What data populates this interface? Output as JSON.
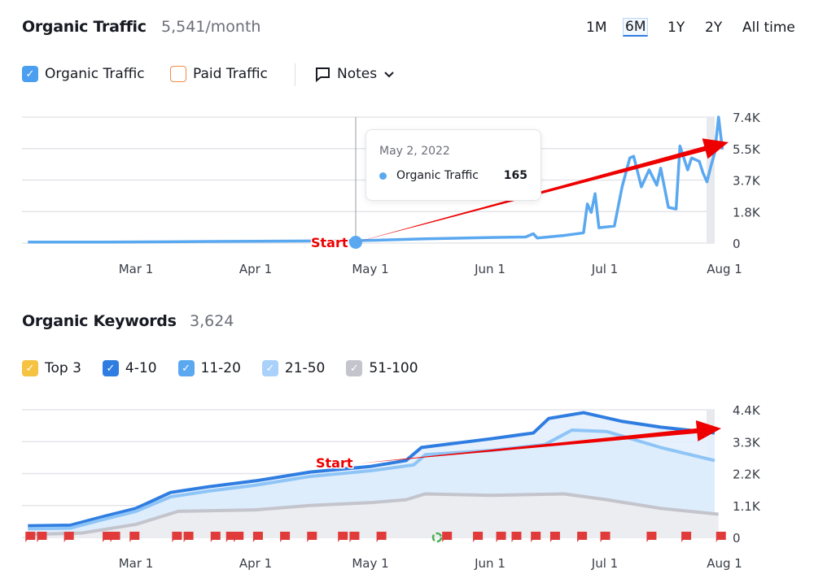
{
  "traffic": {
    "title": "Organic Traffic",
    "summary": "5,541/month",
    "periods": [
      {
        "label": "1M",
        "selected": false
      },
      {
        "label": "6M",
        "selected": true
      },
      {
        "label": "1Y",
        "selected": false
      },
      {
        "label": "2Y",
        "selected": false
      },
      {
        "label": "All time",
        "selected": false
      }
    ],
    "legend": [
      {
        "label": "Organic Traffic",
        "checked": true,
        "color": "#4a9ff0"
      },
      {
        "label": "Paid Traffic",
        "checked": false,
        "color": "#f08c4a"
      }
    ],
    "notes_label": "Notes",
    "tooltip": {
      "date": "May 2, 2022",
      "series": "Organic Traffic",
      "value": "165"
    },
    "annotation": "Start"
  },
  "keywords": {
    "title": "Organic Keywords",
    "summary": "3,624",
    "legend": [
      {
        "label": "Top 3",
        "checked": true,
        "color": "#f5c242"
      },
      {
        "label": "4-10",
        "checked": true,
        "color": "#2f7de1"
      },
      {
        "label": "11-20",
        "checked": true,
        "color": "#5aa8f0"
      },
      {
        "label": "21-50",
        "checked": true,
        "color": "#a9d1fa"
      },
      {
        "label": "51-100",
        "checked": true,
        "color": "#c4c4cc"
      }
    ],
    "annotation": "Start"
  },
  "chart_data": [
    {
      "type": "line",
      "x_ticks": [
        "Mar 1",
        "Apr 1",
        "May 1",
        "Jun 1",
        "Jul 1",
        "Aug 1"
      ],
      "y_ticks": [
        "0",
        "1.8K",
        "3.7K",
        "5.5K",
        "7.4K"
      ],
      "ylim": [
        0,
        7400
      ],
      "grid": true,
      "series": [
        {
          "name": "Organic Traffic",
          "color": "#5aa8f0",
          "points": [
            [
              "2022-02-01",
              60
            ],
            [
              "2022-02-20",
              60
            ],
            [
              "2022-03-10",
              80
            ],
            [
              "2022-04-01",
              110
            ],
            [
              "2022-04-25",
              140
            ],
            [
              "2022-05-02",
              165
            ],
            [
              "2022-05-15",
              250
            ],
            [
              "2022-06-01",
              330
            ],
            [
              "2022-06-10",
              360
            ],
            [
              "2022-06-12",
              550
            ],
            [
              "2022-06-13",
              300
            ],
            [
              "2022-06-20",
              450
            ],
            [
              "2022-06-25",
              600
            ],
            [
              "2022-06-26",
              2300
            ],
            [
              "2022-06-27",
              1800
            ],
            [
              "2022-06-28",
              2900
            ],
            [
              "2022-06-29",
              900
            ],
            [
              "2022-07-03",
              1000
            ],
            [
              "2022-07-05",
              3300
            ],
            [
              "2022-07-07",
              5000
            ],
            [
              "2022-07-08",
              5100
            ],
            [
              "2022-07-10",
              3300
            ],
            [
              "2022-07-12",
              4300
            ],
            [
              "2022-07-14",
              3400
            ],
            [
              "2022-07-15",
              4400
            ],
            [
              "2022-07-17",
              2100
            ],
            [
              "2022-07-19",
              2000
            ],
            [
              "2022-07-20",
              5700
            ],
            [
              "2022-07-22",
              4300
            ],
            [
              "2022-07-23",
              5000
            ],
            [
              "2022-07-25",
              4800
            ],
            [
              "2022-07-26",
              4100
            ],
            [
              "2022-07-27",
              3600
            ],
            [
              "2022-07-28",
              4500
            ],
            [
              "2022-07-29",
              5300
            ],
            [
              "2022-07-30",
              7400
            ],
            [
              "2022-07-31",
              5500
            ]
          ]
        }
      ]
    },
    {
      "type": "area",
      "x_ticks": [
        "Mar 1",
        "Apr 1",
        "May 1",
        "Jun 1",
        "Jul 1",
        "Aug 1"
      ],
      "y_ticks": [
        "0",
        "1.1K",
        "2.2K",
        "3.3K",
        "4.4K"
      ],
      "ylim": [
        0,
        4400
      ],
      "grid": true,
      "series": [
        {
          "name": "4-10",
          "color": "#2f7de1",
          "points": [
            [
              "2022-02-01",
              400
            ],
            [
              "2022-02-12",
              420
            ],
            [
              "2022-02-20",
              700
            ],
            [
              "2022-03-01",
              1000
            ],
            [
              "2022-03-10",
              1550
            ],
            [
              "2022-03-20",
              1750
            ],
            [
              "2022-04-01",
              1950
            ],
            [
              "2022-04-15",
              2250
            ],
            [
              "2022-05-01",
              2450
            ],
            [
              "2022-05-10",
              2650
            ],
            [
              "2022-05-14",
              3100
            ],
            [
              "2022-06-01",
              3400
            ],
            [
              "2022-06-12",
              3600
            ],
            [
              "2022-06-16",
              4100
            ],
            [
              "2022-06-25",
              4300
            ],
            [
              "2022-07-05",
              4000
            ],
            [
              "2022-07-15",
              3800
            ],
            [
              "2022-07-29",
              3600
            ]
          ]
        },
        {
          "name": "11-20",
          "color": "#8ec4f6",
          "points": [
            [
              "2022-02-01",
              300
            ],
            [
              "2022-02-12",
              320
            ],
            [
              "2022-02-20",
              600
            ],
            [
              "2022-03-01",
              900
            ],
            [
              "2022-03-10",
              1400
            ],
            [
              "2022-03-20",
              1600
            ],
            [
              "2022-04-01",
              1800
            ],
            [
              "2022-04-15",
              2100
            ],
            [
              "2022-05-01",
              2300
            ],
            [
              "2022-05-12",
              2500
            ],
            [
              "2022-05-15",
              2850
            ],
            [
              "2022-06-01",
              3000
            ],
            [
              "2022-06-15",
              3200
            ],
            [
              "2022-06-22",
              3700
            ],
            [
              "2022-07-01",
              3650
            ],
            [
              "2022-07-15",
              3100
            ],
            [
              "2022-07-29",
              2650
            ]
          ]
        },
        {
          "name": "51-100",
          "color": "#c4c4cc",
          "points": [
            [
              "2022-02-01",
              100
            ],
            [
              "2022-02-15",
              150
            ],
            [
              "2022-03-01",
              450
            ],
            [
              "2022-03-12",
              900
            ],
            [
              "2022-04-01",
              950
            ],
            [
              "2022-04-15",
              1100
            ],
            [
              "2022-05-01",
              1200
            ],
            [
              "2022-05-10",
              1300
            ],
            [
              "2022-05-15",
              1500
            ],
            [
              "2022-06-01",
              1450
            ],
            [
              "2022-06-20",
              1500
            ],
            [
              "2022-07-01",
              1300
            ],
            [
              "2022-07-15",
              1000
            ],
            [
              "2022-07-30",
              800
            ]
          ]
        }
      ]
    }
  ]
}
